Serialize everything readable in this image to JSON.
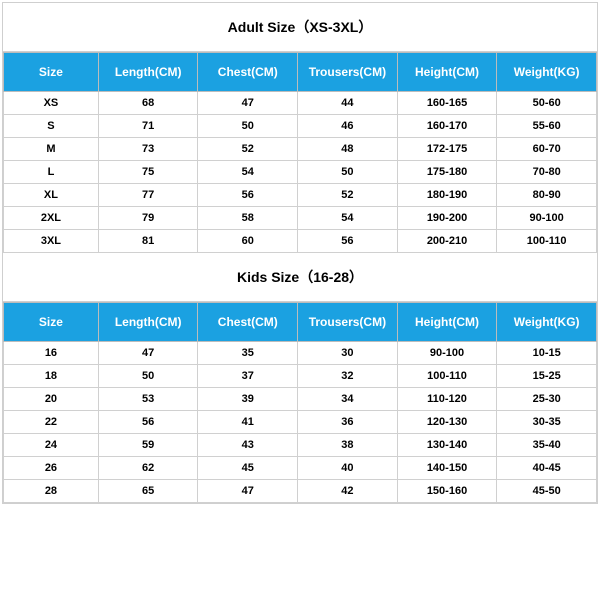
{
  "header_bg": "#1ba1e1",
  "header_fg": "#ffffff",
  "border_color": "#cfcfcf",
  "title_fontsize": 14,
  "th_fontsize": 12,
  "td_fontsize": 11,
  "adult": {
    "title": "Adult Size（XS-3XL）",
    "columns": [
      "Size",
      "Length(CM)",
      "Chest(CM)",
      "Trousers(CM)",
      "Height(CM)",
      "Weight(KG)"
    ],
    "rows": [
      [
        "XS",
        "68",
        "47",
        "44",
        "160-165",
        "50-60"
      ],
      [
        "S",
        "71",
        "50",
        "46",
        "160-170",
        "55-60"
      ],
      [
        "M",
        "73",
        "52",
        "48",
        "172-175",
        "60-70"
      ],
      [
        "L",
        "75",
        "54",
        "50",
        "175-180",
        "70-80"
      ],
      [
        "XL",
        "77",
        "56",
        "52",
        "180-190",
        "80-90"
      ],
      [
        "2XL",
        "79",
        "58",
        "54",
        "190-200",
        "90-100"
      ],
      [
        "3XL",
        "81",
        "60",
        "56",
        "200-210",
        "100-110"
      ]
    ]
  },
  "kids": {
    "title": "Kids Size（16-28）",
    "columns": [
      "Size",
      "Length(CM)",
      "Chest(CM)",
      "Trousers(CM)",
      "Height(CM)",
      "Weight(KG)"
    ],
    "rows": [
      [
        "16",
        "47",
        "35",
        "30",
        "90-100",
        "10-15"
      ],
      [
        "18",
        "50",
        "37",
        "32",
        "100-110",
        "15-25"
      ],
      [
        "20",
        "53",
        "39",
        "34",
        "110-120",
        "25-30"
      ],
      [
        "22",
        "56",
        "41",
        "36",
        "120-130",
        "30-35"
      ],
      [
        "24",
        "59",
        "43",
        "38",
        "130-140",
        "35-40"
      ],
      [
        "26",
        "62",
        "45",
        "40",
        "140-150",
        "40-45"
      ],
      [
        "28",
        "65",
        "47",
        "42",
        "150-160",
        "45-50"
      ]
    ]
  }
}
